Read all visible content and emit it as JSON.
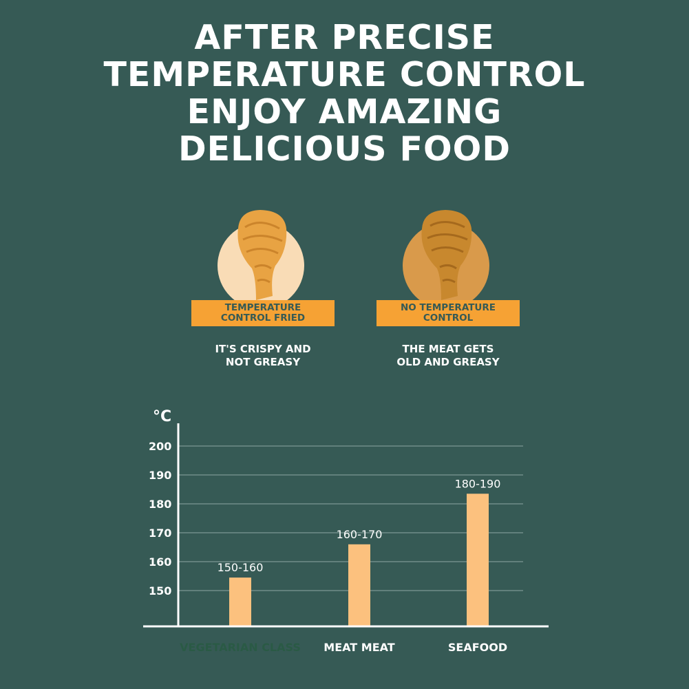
{
  "headline": {
    "lines": [
      "AFTER PRECISE",
      "TEMPERATURE CONTROL",
      "ENJOY AMAZING",
      "DELICIOUS FOOD"
    ]
  },
  "comparison": {
    "with_control": {
      "badge_lines": [
        "TEMPERATURE",
        "CONTROL FRIED"
      ],
      "caption_lines": [
        "IT'S CRISPY AND",
        "NOT GREASY"
      ],
      "plate_color": "#f9dcb6",
      "food_color": "#e8a343"
    },
    "without_control": {
      "badge_lines": [
        "NO TEMPERATURE",
        "CONTROL"
      ],
      "caption_lines": [
        "THE MEAT GETS",
        "OLD AND GREASY"
      ],
      "plate_color": "#d99a4b",
      "food_color": "#c8882e"
    }
  },
  "chart_data": {
    "type": "bar",
    "ylabel": "°C",
    "yticks": [
      150,
      160,
      170,
      180,
      190,
      200
    ],
    "ylim": [
      138,
      210
    ],
    "categories": [
      "VEGETARIAN CLASS",
      "MEAT MEAT",
      "SEAFOOD"
    ],
    "values": [
      154.5,
      166,
      183.5
    ],
    "data_labels": [
      "150-160",
      "160-170",
      "180-190"
    ],
    "grid": true,
    "bar_color": "#fcc17e",
    "axis_color": "#ffffff",
    "grid_color": "#8fa7a2",
    "category_label_colors": [
      "#2a5a45",
      "#ffffff",
      "#ffffff"
    ]
  }
}
